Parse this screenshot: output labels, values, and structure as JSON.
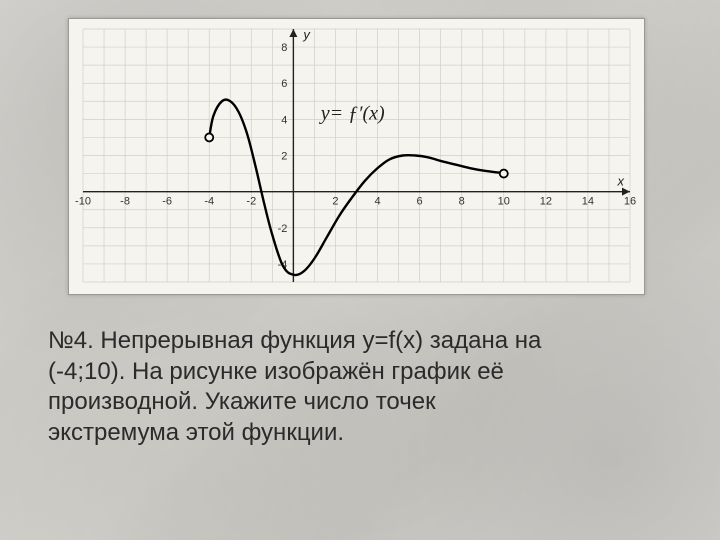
{
  "caption": {
    "line1": "  №4. Непрерывная функция y=f(x) задана на",
    "line2": " (-4;10). На рисунке изображён график её",
    "line3": " производной. Укажите число точек",
    "line4": " экстремума этой функции."
  },
  "chart": {
    "type": "line",
    "inner_label_text": "y= ƒ′(x)",
    "axis_x_name": "x",
    "axis_y_name": "y",
    "background_color": "#f6f4ef",
    "grid_color": "#d2cfc8",
    "axis_color": "#222222",
    "curve_color": "#000000",
    "curve_width": 2.4,
    "xlim": [
      -10,
      16
    ],
    "ylim": [
      -5,
      9
    ],
    "xticks": [
      -10,
      -8,
      -6,
      -4,
      -2,
      2,
      4,
      6,
      8,
      10,
      12,
      14,
      16
    ],
    "yticks": [
      -4,
      -2,
      2,
      4,
      6,
      8
    ],
    "open_points": [
      {
        "x": -4,
        "y": 3
      },
      {
        "x": 10,
        "y": 1
      }
    ],
    "curve_points": [
      {
        "x": -4.0,
        "y": 3.0
      },
      {
        "x": -3.8,
        "y": 4.2
      },
      {
        "x": -3.4,
        "y": 5.0
      },
      {
        "x": -3.0,
        "y": 5.0
      },
      {
        "x": -2.6,
        "y": 4.4
      },
      {
        "x": -2.2,
        "y": 3.2
      },
      {
        "x": -1.8,
        "y": 1.4
      },
      {
        "x": -1.4,
        "y": -0.6
      },
      {
        "x": -1.0,
        "y": -2.4
      },
      {
        "x": -0.5,
        "y": -4.1
      },
      {
        "x": 0.0,
        "y": -4.6
      },
      {
        "x": 0.5,
        "y": -4.4
      },
      {
        "x": 1.0,
        "y": -3.7
      },
      {
        "x": 1.6,
        "y": -2.5
      },
      {
        "x": 2.2,
        "y": -1.3
      },
      {
        "x": 2.8,
        "y": -0.3
      },
      {
        "x": 3.4,
        "y": 0.6
      },
      {
        "x": 4.0,
        "y": 1.3
      },
      {
        "x": 4.6,
        "y": 1.8
      },
      {
        "x": 5.2,
        "y": 2.0
      },
      {
        "x": 5.8,
        "y": 2.0
      },
      {
        "x": 6.4,
        "y": 1.9
      },
      {
        "x": 7.0,
        "y": 1.7
      },
      {
        "x": 7.7,
        "y": 1.5
      },
      {
        "x": 8.4,
        "y": 1.3
      },
      {
        "x": 9.1,
        "y": 1.15
      },
      {
        "x": 9.8,
        "y": 1.05
      },
      {
        "x": 10.0,
        "y": 1.0
      }
    ]
  }
}
